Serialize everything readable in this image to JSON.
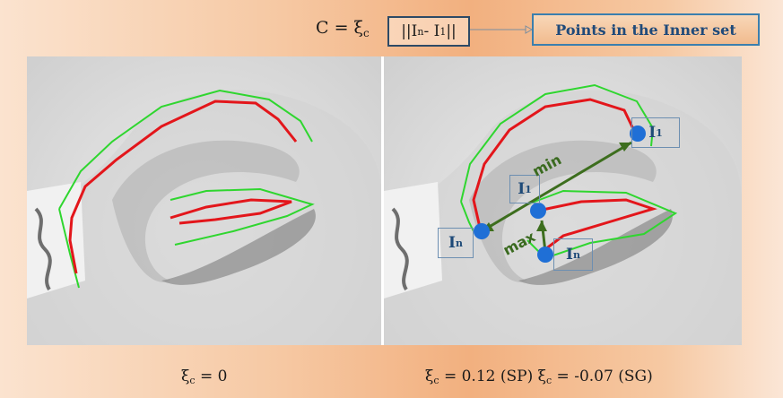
{
  "header": {
    "formula_prefix": "C = ξ",
    "formula_sub": "c",
    "norm_open": "||I",
    "norm_sub_n": "n",
    "norm_mid": " - I",
    "norm_sub_1": "1",
    "norm_close": "||",
    "points_box": "Points in the Inner set"
  },
  "labels": {
    "i1_top_main": "I",
    "i1_top_sub": "1",
    "i1_mid_main": "I",
    "i1_mid_sub": "1",
    "in_left_main": "I",
    "in_left_sub": "n",
    "in_bottom_main": "I",
    "in_bottom_sub": "n",
    "min": "min",
    "max": "max"
  },
  "captions": {
    "left_prefix": "ξ",
    "left_sub": "c",
    "left_rest": " = 0",
    "right_prefix": "ξ",
    "right_sub": "c",
    "right_rest1": " = 0.12 (SP) ξ",
    "right_sub2": "c",
    "right_rest2": " = -0.07 (SG)"
  },
  "colors": {
    "contour_inner": "#e3161b",
    "contour_outer": "#2fd62f",
    "point": "#1f6fd6",
    "arrow": "#3d6e1e"
  }
}
